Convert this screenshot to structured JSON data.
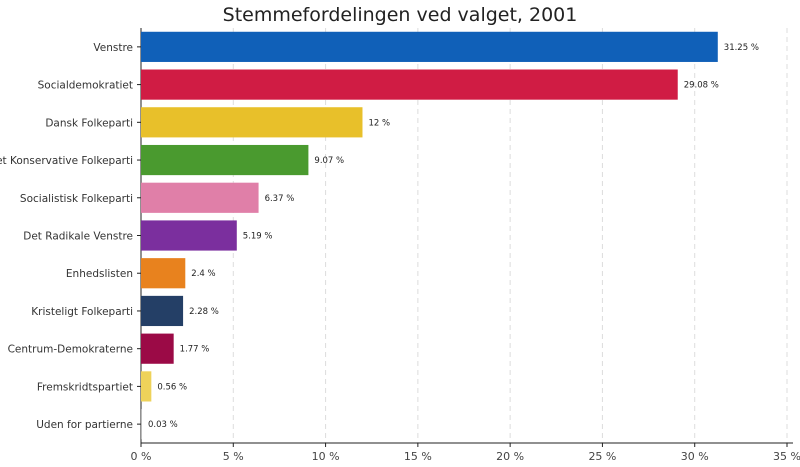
{
  "chart_data": {
    "type": "bar",
    "orientation": "horizontal",
    "title": "Stemmefordelingen ved valget, 2001",
    "xlabel": "",
    "ylabel": "",
    "xlim": [
      0,
      35
    ],
    "x_ticks": [
      "0 %",
      "5 %",
      "10 %",
      "15 %",
      "20 %",
      "25 %",
      "30 %",
      "35 %"
    ],
    "x_tick_values": [
      0,
      5,
      10,
      15,
      20,
      25,
      30,
      35
    ],
    "grid": "vertical-dashed",
    "legend": "none",
    "categories": [
      "Venstre",
      "Socialdemokratiet",
      "Dansk Folkeparti",
      "Det Konservative Folkeparti",
      "Socialistisk Folkeparti",
      "Det Radikale Venstre",
      "Enhedslisten",
      "Kristeligt Folkeparti",
      "Centrum-Demokraterne",
      "Fremskridtspartiet",
      "Uden for partierne"
    ],
    "values": [
      31.25,
      29.08,
      12,
      9.07,
      6.37,
      5.19,
      2.4,
      2.28,
      1.77,
      0.56,
      0.03
    ],
    "value_labels": [
      "31.25 %",
      "29.08 %",
      "12 %",
      "9.07 %",
      "6.37 %",
      "5.19 %",
      "2.4 %",
      "2.28 %",
      "1.77 %",
      "0.56 %",
      "0.03 %"
    ],
    "colors": [
      "#1060b8",
      "#d01c44",
      "#e8c02a",
      "#4a9a2f",
      "#e07fa8",
      "#7b2f9e",
      "#e8821e",
      "#243f66",
      "#9b0a46",
      "#eed25a",
      "#bbbbbb"
    ]
  }
}
